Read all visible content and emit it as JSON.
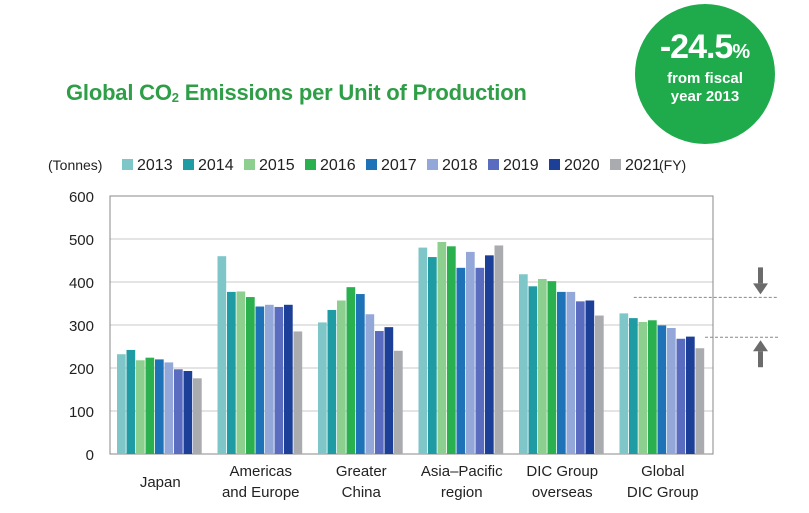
{
  "title_main": "Global CO",
  "title_sub": "2",
  "title_rest": " Emissions per Unit of Production",
  "badge": {
    "value": "-24.5",
    "unit": "%",
    "line1": "from fiscal",
    "line2": "year 2013"
  },
  "colors": {
    "title": "#2e9e47",
    "badge": "#1faa4b",
    "arrow": "#6b6b6b"
  },
  "chart_data": {
    "type": "bar",
    "ylabel": "(Tonnes)",
    "unit_suffix": "(FY)",
    "ylim": [
      0,
      600
    ],
    "yticks": [
      "0",
      "100",
      "200",
      "300",
      "400",
      "500",
      "600"
    ],
    "grid": true,
    "legend_position": "top",
    "categories": [
      [
        "Japan"
      ],
      [
        "Americas",
        "and Europe"
      ],
      [
        "Greater",
        "China"
      ],
      [
        "Asia–Pacific",
        "region"
      ],
      [
        "DIC Group",
        "overseas"
      ],
      [
        "Global",
        "DIC Group"
      ]
    ],
    "series": [
      {
        "name": "2013",
        "color": "#7ec6c8",
        "values": [
          232,
          460,
          306,
          480,
          418,
          327
        ]
      },
      {
        "name": "2014",
        "color": "#1f9ba3",
        "values": [
          242,
          377,
          335,
          458,
          390,
          316
        ]
      },
      {
        "name": "2015",
        "color": "#8dcf8f",
        "values": [
          218,
          378,
          357,
          493,
          407,
          307
        ]
      },
      {
        "name": "2016",
        "color": "#2ab04f",
        "values": [
          224,
          365,
          388,
          483,
          402,
          311
        ]
      },
      {
        "name": "2017",
        "color": "#1e73b8",
        "values": [
          220,
          343,
          372,
          433,
          377,
          299
        ]
      },
      {
        "name": "2018",
        "color": "#93a8d8",
        "values": [
          213,
          347,
          325,
          470,
          377,
          293
        ]
      },
      {
        "name": "2019",
        "color": "#5a6cc0",
        "values": [
          197,
          342,
          286,
          433,
          355,
          268
        ]
      },
      {
        "name": "2020",
        "color": "#1c3f97",
        "values": [
          193,
          347,
          295,
          462,
          357,
          273
        ]
      },
      {
        "name": "2021",
        "color": "#a9abaf",
        "values": [
          176,
          285,
          240,
          485,
          322,
          246
        ]
      }
    ]
  }
}
